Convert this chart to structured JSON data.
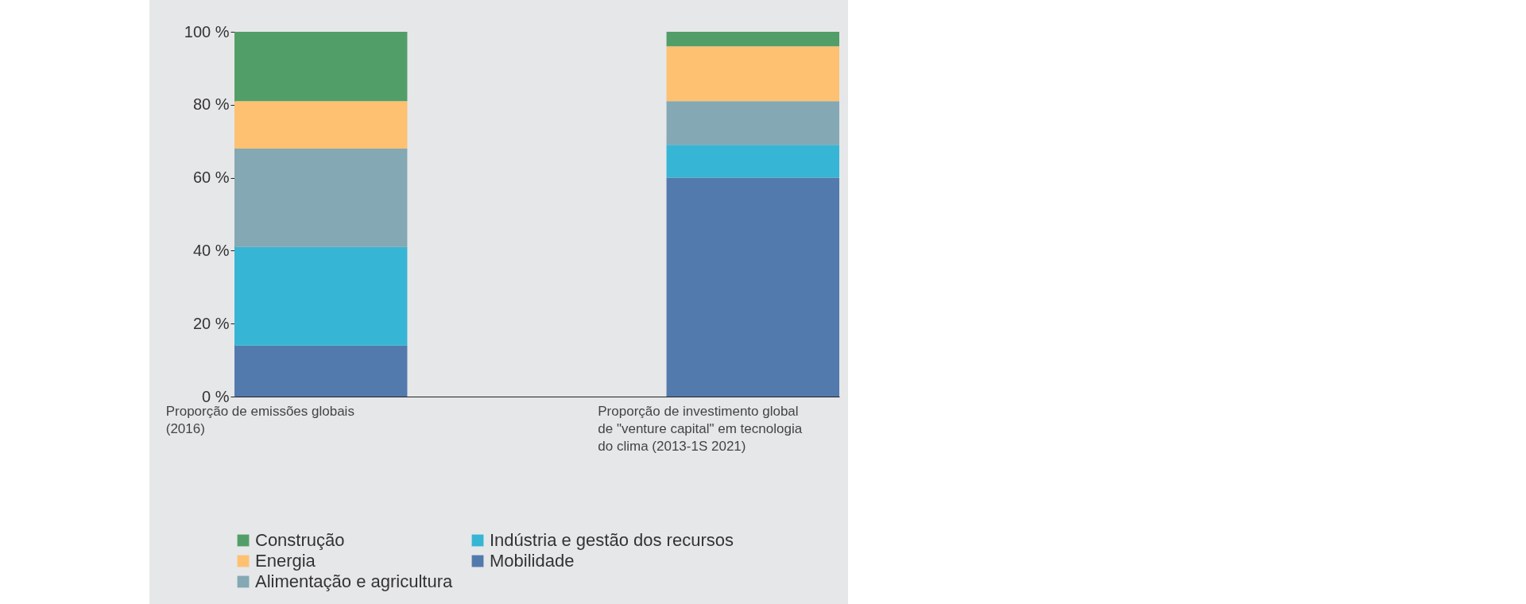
{
  "chart_data": {
    "type": "bar",
    "stacked": true,
    "categories": [
      "Proporção de emissões globais (2016)",
      "Proporção de investimento global de \"venture capital\" em tecnologia do clima (2013-1S 2021)"
    ],
    "series": [
      {
        "name": "Mobilidade",
        "color": "#527aad",
        "values": [
          14,
          60
        ]
      },
      {
        "name": "Indústria e gestão dos recursos",
        "color": "#37b5d4",
        "values": [
          27,
          9
        ]
      },
      {
        "name": "Alimentação e agricultura",
        "color": "#84a8b4",
        "values": [
          27,
          12
        ]
      },
      {
        "name": "Energia",
        "color": "#fdc171",
        "values": [
          13,
          15
        ]
      },
      {
        "name": "Construção",
        "color": "#529e69",
        "values": [
          19,
          4
        ]
      }
    ],
    "ylim": [
      0,
      100
    ],
    "yticks": [
      {
        "value": 0,
        "label": "0 %"
      },
      {
        "value": 20,
        "label": "20 %"
      },
      {
        "value": 40,
        "label": "40 %"
      },
      {
        "value": 60,
        "label": "60 %"
      },
      {
        "value": 80,
        "label": "80 %"
      },
      {
        "value": 100,
        "label": "100 %"
      }
    ],
    "grid": false,
    "legend": "bottom"
  }
}
